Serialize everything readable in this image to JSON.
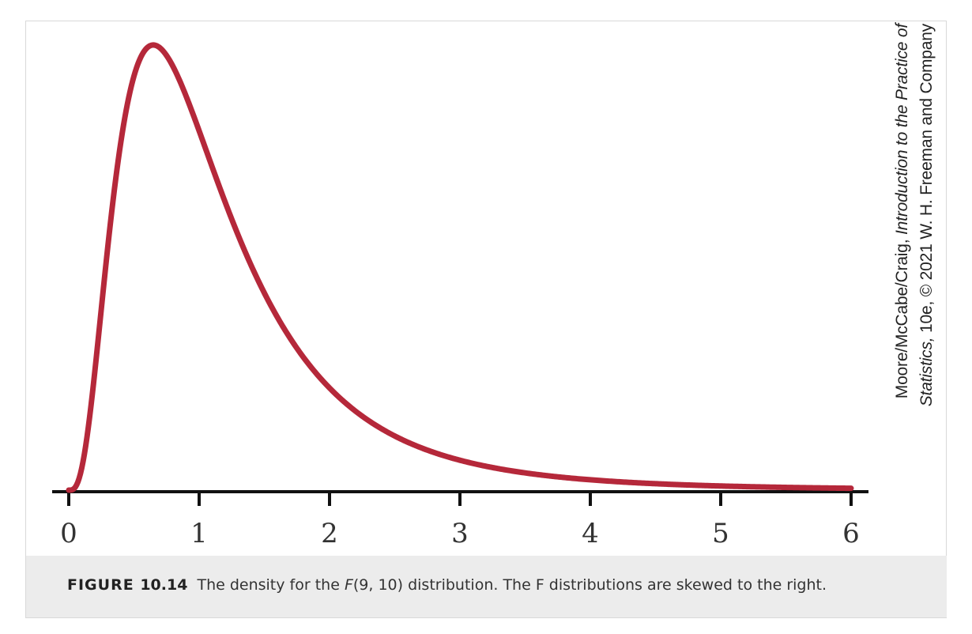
{
  "chart_data": {
    "type": "line",
    "title": "",
    "xlabel": "",
    "ylabel": "",
    "xlim": [
      0,
      6
    ],
    "xticks": [
      "0",
      "1",
      "2",
      "3",
      "4",
      "5",
      "6"
    ],
    "y_axis_visible": false,
    "grid": false,
    "series": [
      {
        "distribution": "F",
        "df1": 9,
        "df2": 10,
        "color": "#b5283a",
        "x": [
          0.05,
          0.1,
          0.15,
          0.2,
          0.25,
          0.3,
          0.4,
          0.5,
          0.6,
          0.65,
          0.7,
          0.8,
          0.9,
          1.0,
          1.2,
          1.4,
          1.6,
          1.8,
          2.0,
          2.5,
          3.0,
          3.5,
          4.0,
          4.5,
          5.0,
          5.5,
          6.0
        ],
        "y": [
          0.003,
          0.027,
          0.087,
          0.174,
          0.271,
          0.366,
          0.524,
          0.625,
          0.671,
          0.677,
          0.675,
          0.648,
          0.601,
          0.544,
          0.429,
          0.329,
          0.25,
          0.189,
          0.143,
          0.074,
          0.039,
          0.022,
          0.012,
          0.007,
          0.004,
          0.003,
          0.002
        ]
      }
    ]
  },
  "credit": {
    "line1_authors": "Moore/McCabe/Craig, ",
    "line1_title": "Introduction to the Practice of",
    "line2_title": "Statistics,",
    "line2_rest": " 10e, © 2021 W. H. Freeman and Company"
  },
  "caption": {
    "label_word": "FIGURE",
    "label_number": "10.14",
    "text_before": " The density for the ",
    "f_symbol": "F",
    "text_after": "(9, 10) distribution. The F distributions are skewed to the right."
  }
}
